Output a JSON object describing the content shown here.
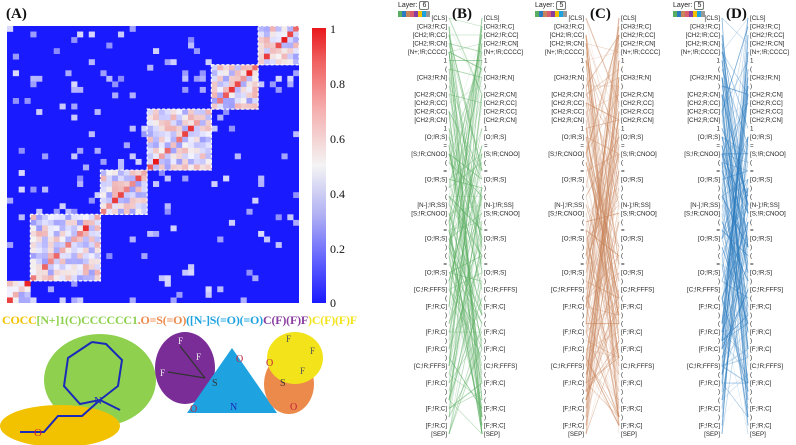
{
  "panels": {
    "A": "(A)",
    "B": "(B)",
    "C": "(C)",
    "D": "(D)"
  },
  "colorbar": {
    "ticks": [
      "1",
      "0.8",
      "0.6",
      "0.4",
      "0.2",
      "0"
    ],
    "colors": {
      "high": "#e8171b",
      "mid": "#f4f4f4",
      "low": "#1a1aff"
    }
  },
  "smiles": {
    "segments": [
      {
        "text": "COCC",
        "color": "#f2c200"
      },
      {
        "text": "[N+]1(C)CCCCCC1",
        "color": "#8fd14f"
      },
      {
        "text": ".O=S(=O)",
        "color": "#ec8a4c"
      },
      {
        "text": "([N-]S(=O)(=O)",
        "color": "#1fa3e0"
      },
      {
        "text": "C(F)(F)F",
        "color": "#8a3ea0"
      },
      {
        "text": ")C(F)(F)F",
        "color": "#f2e31a"
      }
    ]
  },
  "molecule": {
    "atoms": {
      "N_plus": "N",
      "N_minus": "N",
      "O": "O",
      "F": "F",
      "S": "S"
    }
  },
  "attention": {
    "layer_label": "Layer:",
    "layers": {
      "B": "6",
      "C": "5",
      "D": "5"
    },
    "tokens": [
      "[CLS]",
      "[CH3;!R;C]",
      "[CH2;!R;CC]",
      "[CH2;!R;CN]",
      "[N+;!R;CCCC]",
      "1",
      "(",
      "[CH3;!R;N]",
      ")",
      "[CH2;R;CN]",
      "[CH2;R;CC]",
      "[CH2;R;CC]",
      "[CH2;R;CN]",
      "1",
      "[O;!R;S]",
      "=",
      "[S;!R;CNOO]",
      "(",
      "=",
      "[O;!R;S]",
      ")",
      "(",
      "[N-];!R;SS]",
      "[S;!R;CNOO]",
      "(",
      "=",
      "[O;!R;S]",
      ")",
      "(",
      "=",
      "[O;!R;S]",
      ")",
      "[C;!R;FFFS]",
      "(",
      "[F;!R;C]",
      ")",
      "(",
      "[F;!R;C]",
      ")",
      "[F;!R;C]",
      ")",
      "[C;!R;FFFS]",
      "(",
      "[F;!R;C]",
      ")",
      "(",
      "[F;!R;C]",
      ")",
      "[F;!R;C]",
      "[SEP]"
    ],
    "colors": {
      "B": "#5aae61",
      "C": "#c8845a",
      "D": "#2b7bbf"
    }
  }
}
